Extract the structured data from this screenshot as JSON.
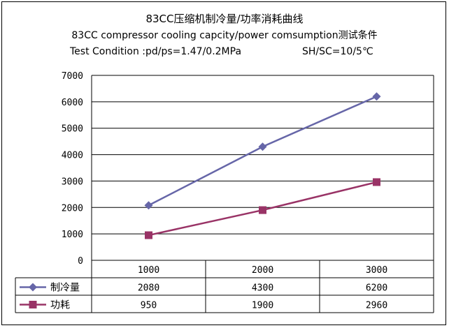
{
  "chart_data": {
    "type": "line",
    "title": "83CC压缩机制冷量/功率消耗曲线",
    "subtitle": "83CC compressor cooling capcity/power comsumption测试条件",
    "condition_left": "Test Condition :pd/ps=1.47/0.2MPa",
    "condition_right": "SH/SC=10/5℃",
    "categories": [
      "1000",
      "2000",
      "3000"
    ],
    "ylim": [
      0,
      7000
    ],
    "yticks": [
      "0",
      "1000",
      "2000",
      "3000",
      "4000",
      "5000",
      "6000",
      "7000"
    ],
    "grid": true,
    "legend": "data-table-left",
    "series": [
      {
        "name": "制冷量",
        "values": [
          2080,
          4300,
          6200
        ],
        "labels": [
          "2080",
          "4300",
          "6200"
        ],
        "color": "#6666A8",
        "marker": "diamond"
      },
      {
        "name": "功耗",
        "values": [
          950,
          1900,
          2960
        ],
        "labels": [
          "950",
          "1900",
          "2960"
        ],
        "color": "#993366",
        "marker": "square"
      }
    ]
  }
}
